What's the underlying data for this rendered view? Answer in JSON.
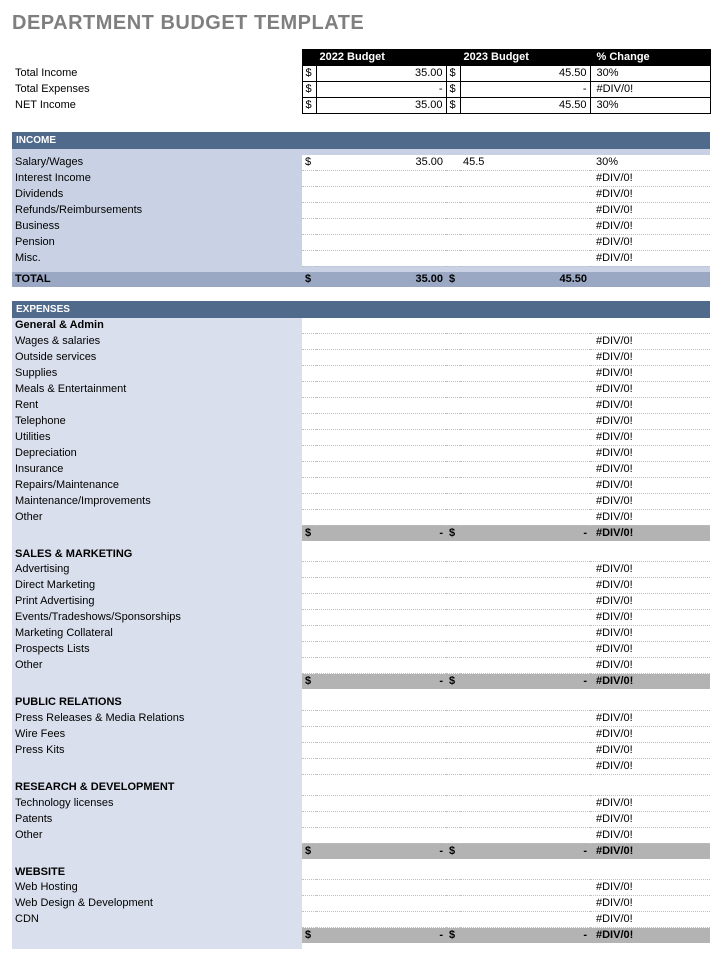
{
  "title": "DEPARTMENT BUDGET TEMPLATE",
  "colors": {
    "header_bg": "#000000",
    "header_fg": "#ffffff",
    "section_bar_bg": "#506a8c",
    "income_row_bg": "#c9d2e4",
    "income_total_bg": "#9aa8c4",
    "expense_label_bg": "#d9dfec",
    "subtotal_bg": "#b3b3b3",
    "dotted_border": "#bfbfbf",
    "title_color": "#7f7f7f"
  },
  "columns": {
    "budget_a": "2022 Budget",
    "budget_b": "2023 Budget",
    "pct": "% Change"
  },
  "summary": [
    {
      "label": "Total Income",
      "cur": "$",
      "a": "35.00",
      "b_cur": "$",
      "b": "45.50",
      "pct": "30%"
    },
    {
      "label": "Total Expenses",
      "cur": "$",
      "a": "-",
      "b_cur": "$",
      "b": "-",
      "pct": "#DIV/0!"
    },
    {
      "label": "NET Income",
      "cur": "$",
      "a": "35.00",
      "b_cur": "$",
      "b": "45.50",
      "pct": "30%"
    }
  ],
  "income": {
    "title": "INCOME",
    "rows": [
      {
        "label": "Salary/Wages",
        "cur": "$",
        "a": "35.00",
        "b": "45.5",
        "pct": "30%"
      },
      {
        "label": "Interest Income",
        "cur": "",
        "a": "",
        "b": "",
        "pct": "#DIV/0!"
      },
      {
        "label": "Dividends",
        "cur": "",
        "a": "",
        "b": "",
        "pct": "#DIV/0!"
      },
      {
        "label": "Refunds/Reimbursements",
        "cur": "",
        "a": "",
        "b": "",
        "pct": "#DIV/0!"
      },
      {
        "label": "Business",
        "cur": "",
        "a": "",
        "b": "",
        "pct": "#DIV/0!"
      },
      {
        "label": "Pension",
        "cur": "",
        "a": "",
        "b": "",
        "pct": "#DIV/0!"
      },
      {
        "label": "Misc.",
        "cur": "",
        "a": "",
        "b": "",
        "pct": "#DIV/0!"
      }
    ],
    "total": {
      "label": "TOTAL",
      "cur": "$",
      "a": "35.00",
      "b_cur": "$",
      "b": "45.50",
      "pct": ""
    }
  },
  "expenses": {
    "title": "EXPENSES",
    "groups": [
      {
        "name": "General & Admin",
        "rows": [
          {
            "label": "Wages & salaries",
            "pct": "#DIV/0!"
          },
          {
            "label": "Outside services",
            "pct": "#DIV/0!"
          },
          {
            "label": "Supplies",
            "pct": "#DIV/0!"
          },
          {
            "label": "Meals & Entertainment",
            "pct": "#DIV/0!"
          },
          {
            "label": "Rent",
            "pct": "#DIV/0!"
          },
          {
            "label": "Telephone",
            "pct": "#DIV/0!"
          },
          {
            "label": "Utilities",
            "pct": "#DIV/0!"
          },
          {
            "label": "Depreciation",
            "pct": "#DIV/0!"
          },
          {
            "label": "Insurance",
            "pct": "#DIV/0!"
          },
          {
            "label": "Repairs/Maintenance",
            "pct": "#DIV/0!"
          },
          {
            "label": "Maintenance/Improvements",
            "pct": "#DIV/0!"
          },
          {
            "label": "Other",
            "pct": "#DIV/0!"
          }
        ],
        "subtotal": {
          "cur": "$",
          "a": "-",
          "b_cur": "$",
          "b": "-",
          "pct": "#DIV/0!"
        }
      },
      {
        "name": "SALES & MARKETING",
        "rows": [
          {
            "label": "Advertising",
            "pct": "#DIV/0!"
          },
          {
            "label": "Direct Marketing",
            "pct": "#DIV/0!"
          },
          {
            "label": "Print Advertising",
            "pct": "#DIV/0!"
          },
          {
            "label": "Events/Tradeshows/Sponsorships",
            "pct": "#DIV/0!"
          },
          {
            "label": "Marketing Collateral",
            "pct": "#DIV/0!"
          },
          {
            "label": "Prospects Lists",
            "pct": "#DIV/0!"
          },
          {
            "label": "Other",
            "pct": "#DIV/0!"
          }
        ],
        "subtotal": {
          "cur": "$",
          "a": "-",
          "b_cur": "$",
          "b": "-",
          "pct": "#DIV/0!"
        }
      },
      {
        "name": "PUBLIC RELATIONS",
        "rows": [
          {
            "label": "Press Releases & Media Relations",
            "pct": "#DIV/0!"
          },
          {
            "label": "Wire Fees",
            "pct": "#DIV/0!"
          },
          {
            "label": "Press Kits",
            "pct": "#DIV/0!"
          },
          {
            "label": "",
            "pct": "#DIV/0!"
          }
        ],
        "subtotal": null
      },
      {
        "name": "RESEARCH & DEVELOPMENT",
        "rows": [
          {
            "label": "Technology licenses",
            "pct": "#DIV/0!"
          },
          {
            "label": "Patents",
            "pct": "#DIV/0!"
          },
          {
            "label": "Other",
            "pct": "#DIV/0!"
          }
        ],
        "subtotal": {
          "cur": "$",
          "a": "-",
          "b_cur": "$",
          "b": "-",
          "pct": "#DIV/0!"
        }
      },
      {
        "name": "WEBSITE",
        "rows": [
          {
            "label": "Web Hosting",
            "pct": "#DIV/0!"
          },
          {
            "label": "Web Design & Development",
            "pct": "#DIV/0!"
          },
          {
            "label": "CDN",
            "pct": "#DIV/0!"
          }
        ],
        "subtotal": {
          "cur": "$",
          "a": "-",
          "b_cur": "$",
          "b": "-",
          "pct": "#DIV/0!"
        }
      }
    ]
  }
}
